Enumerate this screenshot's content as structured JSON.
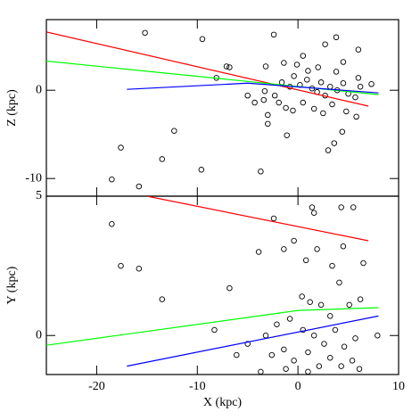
{
  "chart_data": [
    {
      "type": "scatter",
      "ylabel": "Z (kpc)",
      "xlim": [
        -25,
        10
      ],
      "ylim": [
        -12,
        8
      ],
      "yticks": [
        -10,
        0
      ],
      "points": {
        "x": [
          -15.2,
          -9.5,
          -2.4,
          3.8,
          2.7,
          6.0,
          0.5,
          -7.1,
          -6.8,
          -3.2,
          -1.4,
          -8.1,
          3.8,
          7.3,
          -17.6,
          -18.5,
          -15.8,
          -13.5,
          -12.3,
          -9.6,
          -3.7,
          -1.1,
          -3.0,
          -3.0,
          4.4,
          3.6,
          3.0,
          -1.6,
          -0.8,
          -0.4,
          0.2,
          0.9,
          1.4,
          1.9,
          2.3,
          2.7,
          3.2,
          3.9,
          4.5,
          5.0,
          5.7,
          6.2,
          -2.3,
          -1.9,
          -1.2,
          -0.5,
          0.5,
          1.6,
          2.5,
          3.4,
          4.8,
          5.8,
          -4.3,
          -5.0,
          -3.3,
          1.0,
          2.0,
          4.5,
          -0.1,
          -3.4,
          6.0
        ],
        "values": [
          6.5,
          5.8,
          6.3,
          6.0,
          5.2,
          4.6,
          3.9,
          2.7,
          2.6,
          2.7,
          3.1,
          1.4,
          2.1,
          0.7,
          -6.5,
          -10.1,
          -10.9,
          -7.8,
          -4.6,
          -9.0,
          -9.2,
          -5.1,
          -3.8,
          -2.8,
          -4.7,
          -6.0,
          -6.8,
          0.9,
          0.4,
          1.6,
          0.6,
          1.2,
          0.2,
          -0.2,
          0.9,
          -0.6,
          0.4,
          0,
          0.8,
          -0.4,
          -0.8,
          0.4,
          -0.6,
          -1.4,
          -2.0,
          -2.3,
          -1.4,
          -2.1,
          -2.6,
          -1.6,
          -2.4,
          -3.0,
          -1.4,
          -0.6,
          -0.1,
          2.2,
          2.6,
          3.2,
          2.9,
          -1.1,
          1.4
        ]
      },
      "lines": [
        {
          "color": "#ff0000",
          "x": [
            -25,
            7
          ],
          "values": [
            6.6,
            -1.8
          ]
        },
        {
          "color": "#00ff00",
          "x": [
            -25,
            8
          ],
          "values": [
            3.3,
            -0.5
          ]
        },
        {
          "color": "#0000ff",
          "x": [
            -17,
            -5,
            8
          ],
          "values": [
            0.1,
            0.8,
            -0.3
          ]
        }
      ]
    },
    {
      "type": "scatter",
      "ylabel": "Y (kpc)",
      "xlabel": "X (kpc)",
      "xlim": [
        -25,
        10
      ],
      "ylim": [
        -1.4,
        5
      ],
      "xticks": [
        -20,
        -10,
        0,
        10
      ],
      "yticks": [
        0,
        5
      ],
      "points": {
        "x": [
          -18.5,
          -17.6,
          -15.8,
          -13.5,
          -6.8,
          -8.3,
          -6.1,
          -3.7,
          1.4,
          1.6,
          4.3,
          5.5,
          -2.4,
          -0.4,
          -3.9,
          -1.4,
          1.9,
          0.8,
          4.5,
          3.4,
          6.5,
          4.1,
          6.2,
          0.4,
          1.2,
          2.3,
          5.1,
          3.2,
          -0.8,
          -2.1,
          -3.2,
          0.5,
          1.6,
          2.6,
          3.7,
          4.6,
          5.7,
          7.9,
          -1.4,
          -0.4,
          1.0,
          2.1,
          3.2,
          4.3,
          5.4,
          -2.6,
          -1.2,
          1.0,
          6.1,
          -5.0
        ],
        "values": [
          4.0,
          2.5,
          2.4,
          1.3,
          1.7,
          0.2,
          -0.7,
          -1.3,
          4.6,
          4.4,
          4.6,
          4.6,
          4.2,
          3.4,
          3.0,
          3.1,
          3.1,
          2.7,
          3.2,
          2.5,
          2.6,
          1.9,
          1.3,
          1.4,
          1.2,
          1.1,
          1.1,
          0.7,
          0.6,
          0.4,
          0,
          0.2,
          0,
          -0.3,
          0.2,
          -0.4,
          -0.1,
          0,
          -0.5,
          -0.9,
          -0.6,
          -1.1,
          -0.8,
          -1.1,
          -0.9,
          -0.7,
          -1.2,
          -1.3,
          -1.2,
          -0.3
        ]
      },
      "lines": [
        {
          "color": "#ff0000",
          "x": [
            -15,
            7
          ],
          "values": [
            5,
            3.4
          ]
        },
        {
          "color": "#00ff00",
          "x": [
            -25,
            0,
            8
          ],
          "values": [
            -0.35,
            0.9,
            1.0
          ]
        },
        {
          "color": "#0000ff",
          "x": [
            -17,
            8
          ],
          "values": [
            -1.1,
            0.7
          ]
        }
      ]
    }
  ]
}
